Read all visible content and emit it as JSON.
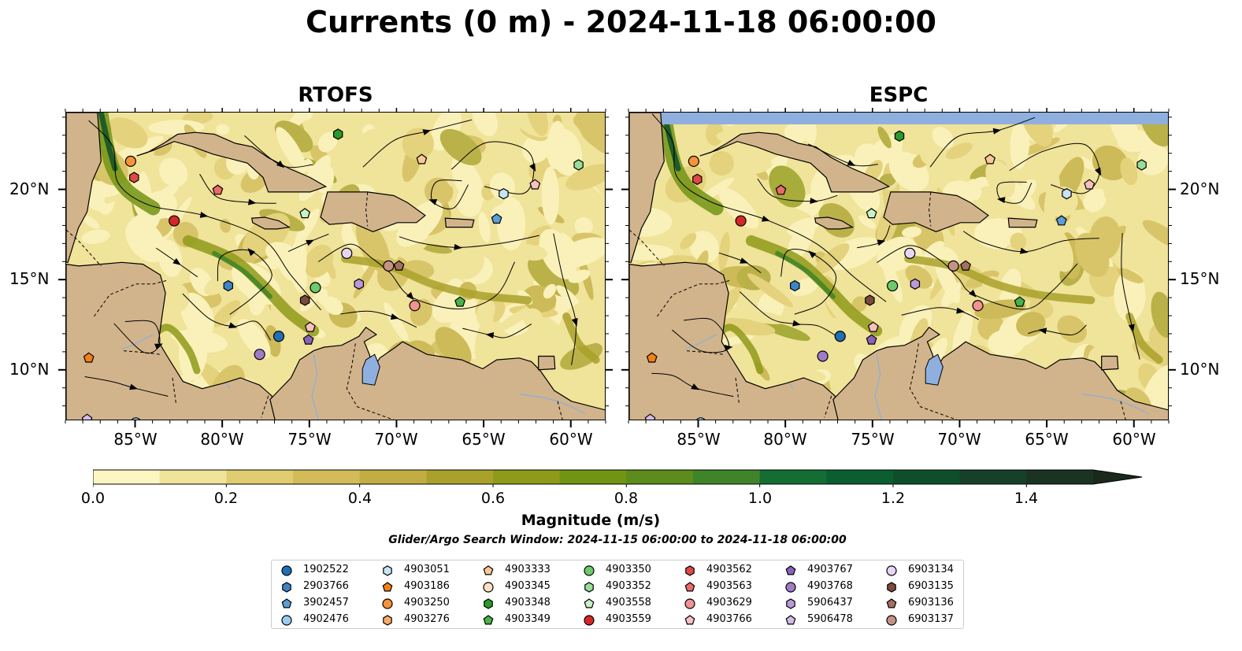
{
  "title": "Currents (0 m) - 2024-11-18 06:00:00",
  "panels": {
    "left": {
      "title": "RTOFS"
    },
    "right": {
      "title": "ESPC"
    }
  },
  "axes": {
    "lon_labels": [
      "85°W",
      "80°W",
      "75°W",
      "70°W",
      "65°W",
      "60°W"
    ],
    "lat_labels": [
      "20°N",
      "15°N",
      "10°N"
    ],
    "lon_range": [
      -89,
      -58
    ],
    "lat_range": [
      7.2,
      24.3
    ]
  },
  "colorbar": {
    "title": "Magnitude (m/s)",
    "tick_labels": [
      "0.0",
      "0.2",
      "0.4",
      "0.6",
      "0.8",
      "1.0",
      "1.2",
      "1.4"
    ],
    "ticks": [
      0,
      0.2,
      0.4,
      0.6,
      0.8,
      1.0,
      1.2,
      1.4
    ],
    "levels": [
      0,
      0.1,
      0.2,
      0.3,
      0.4,
      0.5,
      0.6,
      0.7,
      0.8,
      0.9,
      1.0,
      1.1,
      1.2,
      1.3,
      1.4,
      1.5
    ],
    "colors": [
      "#fcf6c3",
      "#f0e39a",
      "#e0cd72",
      "#d2bb58",
      "#c2ad42",
      "#a9a12c",
      "#8f9a1a",
      "#729414",
      "#5c8c1c",
      "#3f8428",
      "#146e33",
      "#0b5e30",
      "#0e4f29",
      "#16402a",
      "#1b3322",
      "#1a2a1a"
    ],
    "extend": "max"
  },
  "search_window": "Glider/Argo Search Window: 2024-11-15 06:00:00 to 2024-11-18 06:00:00",
  "colors": {
    "land": "#d2b48c",
    "water": "#8fb0df",
    "rivers": "#9ab0c8"
  },
  "floats": [
    {
      "id": "1902522",
      "marker": "circle",
      "color": "#1f6fb4"
    },
    {
      "id": "2903766",
      "marker": "hexagon",
      "color": "#3d85c6"
    },
    {
      "id": "3902457",
      "marker": "pentagon",
      "color": "#5b9fd8"
    },
    {
      "id": "4902476",
      "marker": "circle",
      "color": "#9ccbf0"
    },
    {
      "id": "4903051",
      "marker": "hexagon",
      "color": "#c9e4f7"
    },
    {
      "id": "4903186",
      "marker": "pentagon",
      "color": "#f57f17"
    },
    {
      "id": "4903250",
      "marker": "circle",
      "color": "#f7923a"
    },
    {
      "id": "4903276",
      "marker": "hexagon",
      "color": "#f9ab6a"
    },
    {
      "id": "4903333",
      "marker": "pentagon",
      "color": "#fbc795"
    },
    {
      "id": "4903345",
      "marker": "circle",
      "color": "#fde0c2"
    },
    {
      "id": "4903348",
      "marker": "hexagon",
      "color": "#2a9a2a"
    },
    {
      "id": "4903349",
      "marker": "pentagon",
      "color": "#46b446"
    },
    {
      "id": "4903350",
      "marker": "circle",
      "color": "#6ccb6c"
    },
    {
      "id": "4903352",
      "marker": "hexagon",
      "color": "#98de98"
    },
    {
      "id": "4903558",
      "marker": "pentagon",
      "color": "#c6f2c6"
    },
    {
      "id": "4903559",
      "marker": "circle",
      "color": "#d62728"
    },
    {
      "id": "4903562",
      "marker": "hexagon",
      "color": "#e04848"
    },
    {
      "id": "4903563",
      "marker": "pentagon",
      "color": "#ea6a6a"
    },
    {
      "id": "4903629",
      "marker": "circle",
      "color": "#f29292"
    },
    {
      "id": "4903766",
      "marker": "pentagon",
      "color": "#f8c0c0"
    },
    {
      "id": "4903767",
      "marker": "pentagon",
      "color": "#8a62b8"
    },
    {
      "id": "4903768",
      "marker": "circle",
      "color": "#a07cc8"
    },
    {
      "id": "5906437",
      "marker": "hexagon",
      "color": "#b89ad8"
    },
    {
      "id": "5906478",
      "marker": "pentagon",
      "color": "#d2bce8"
    },
    {
      "id": "6903134",
      "marker": "circle",
      "color": "#e6d6f4"
    },
    {
      "id": "6903135",
      "marker": "hexagon",
      "color": "#7b4a3a"
    },
    {
      "id": "6903136",
      "marker": "pentagon",
      "color": "#a4705f"
    },
    {
      "id": "6903137",
      "marker": "circle",
      "color": "#c49386"
    }
  ],
  "positions": {
    "left": [
      {
        "id": "4903250",
        "lon": -85.3,
        "lat": 21.6
      },
      {
        "id": "4903562",
        "lon": -85.1,
        "lat": 20.7
      },
      {
        "id": "4903563",
        "lon": -80.3,
        "lat": 20.0
      },
      {
        "id": "4903559",
        "lon": -82.8,
        "lat": 18.3
      },
      {
        "id": "4903348",
        "lon": -73.4,
        "lat": 23.1
      },
      {
        "id": "4903333",
        "lon": -68.6,
        "lat": 21.7
      },
      {
        "id": "4903352",
        "lon": -59.6,
        "lat": 21.4
      },
      {
        "id": "4903051",
        "lon": -63.9,
        "lat": 19.8
      },
      {
        "id": "4903766",
        "lon": -62.1,
        "lat": 20.3
      },
      {
        "id": "4903558",
        "lon": -75.3,
        "lat": 18.7
      },
      {
        "id": "3902457",
        "lon": -64.3,
        "lat": 18.4
      },
      {
        "id": "6903134",
        "lon": -72.9,
        "lat": 16.5
      },
      {
        "id": "6903137",
        "lon": -70.5,
        "lat": 15.8
      },
      {
        "id": "6903136",
        "lon": -69.9,
        "lat": 15.8
      },
      {
        "id": "2903766",
        "lon": -79.7,
        "lat": 14.7
      },
      {
        "id": "4903350",
        "lon": -74.7,
        "lat": 14.6
      },
      {
        "id": "5906437",
        "lon": -72.2,
        "lat": 14.8
      },
      {
        "id": "6903135",
        "lon": -75.3,
        "lat": 13.9
      },
      {
        "id": "4903629",
        "lon": -69.0,
        "lat": 13.6
      },
      {
        "id": "4903349",
        "lon": -66.4,
        "lat": 13.8
      },
      {
        "id": "4903766",
        "lon": -75.0,
        "lat": 12.4
      },
      {
        "id": "1902522",
        "lon": -76.8,
        "lat": 11.9
      },
      {
        "id": "4903767",
        "lon": -75.1,
        "lat": 11.7
      },
      {
        "id": "4903768",
        "lon": -77.9,
        "lat": 10.9
      },
      {
        "id": "4903186",
        "lon": -87.7,
        "lat": 10.7
      },
      {
        "id": "5906478",
        "lon": -87.8,
        "lat": 7.3
      },
      {
        "id": "4902476",
        "lon": -85.0,
        "lat": 7.1
      }
    ],
    "right": [
      {
        "id": "4903250",
        "lon": -85.3,
        "lat": 21.6
      },
      {
        "id": "4903562",
        "lon": -85.1,
        "lat": 20.6
      },
      {
        "id": "4903563",
        "lon": -80.3,
        "lat": 20.0
      },
      {
        "id": "4903559",
        "lon": -82.6,
        "lat": 18.3
      },
      {
        "id": "4903348",
        "lon": -73.5,
        "lat": 23.0
      },
      {
        "id": "4903333",
        "lon": -68.3,
        "lat": 21.7
      },
      {
        "id": "4903352",
        "lon": -59.6,
        "lat": 21.4
      },
      {
        "id": "4903051",
        "lon": -63.9,
        "lat": 19.8
      },
      {
        "id": "4903766",
        "lon": -62.6,
        "lat": 20.3
      },
      {
        "id": "4903558",
        "lon": -75.1,
        "lat": 18.7
      },
      {
        "id": "3902457",
        "lon": -64.2,
        "lat": 18.3
      },
      {
        "id": "6903134",
        "lon": -72.9,
        "lat": 16.5
      },
      {
        "id": "6903137",
        "lon": -70.4,
        "lat": 15.8
      },
      {
        "id": "6903136",
        "lon": -69.7,
        "lat": 15.8
      },
      {
        "id": "2903766",
        "lon": -79.5,
        "lat": 14.7
      },
      {
        "id": "4903350",
        "lon": -73.9,
        "lat": 14.7
      },
      {
        "id": "5906437",
        "lon": -72.6,
        "lat": 14.8
      },
      {
        "id": "6903135",
        "lon": -75.2,
        "lat": 13.9
      },
      {
        "id": "4903629",
        "lon": -69.0,
        "lat": 13.6
      },
      {
        "id": "4903349",
        "lon": -66.6,
        "lat": 13.8
      },
      {
        "id": "4903766",
        "lon": -75.0,
        "lat": 12.4
      },
      {
        "id": "1902522",
        "lon": -76.9,
        "lat": 11.9
      },
      {
        "id": "4903767",
        "lon": -75.1,
        "lat": 11.7
      },
      {
        "id": "4903768",
        "lon": -77.9,
        "lat": 10.8
      },
      {
        "id": "4903186",
        "lon": -87.7,
        "lat": 10.7
      },
      {
        "id": "5906478",
        "lon": -87.8,
        "lat": 7.3
      },
      {
        "id": "4902476",
        "lon": -84.9,
        "lat": 7.1
      }
    ]
  }
}
